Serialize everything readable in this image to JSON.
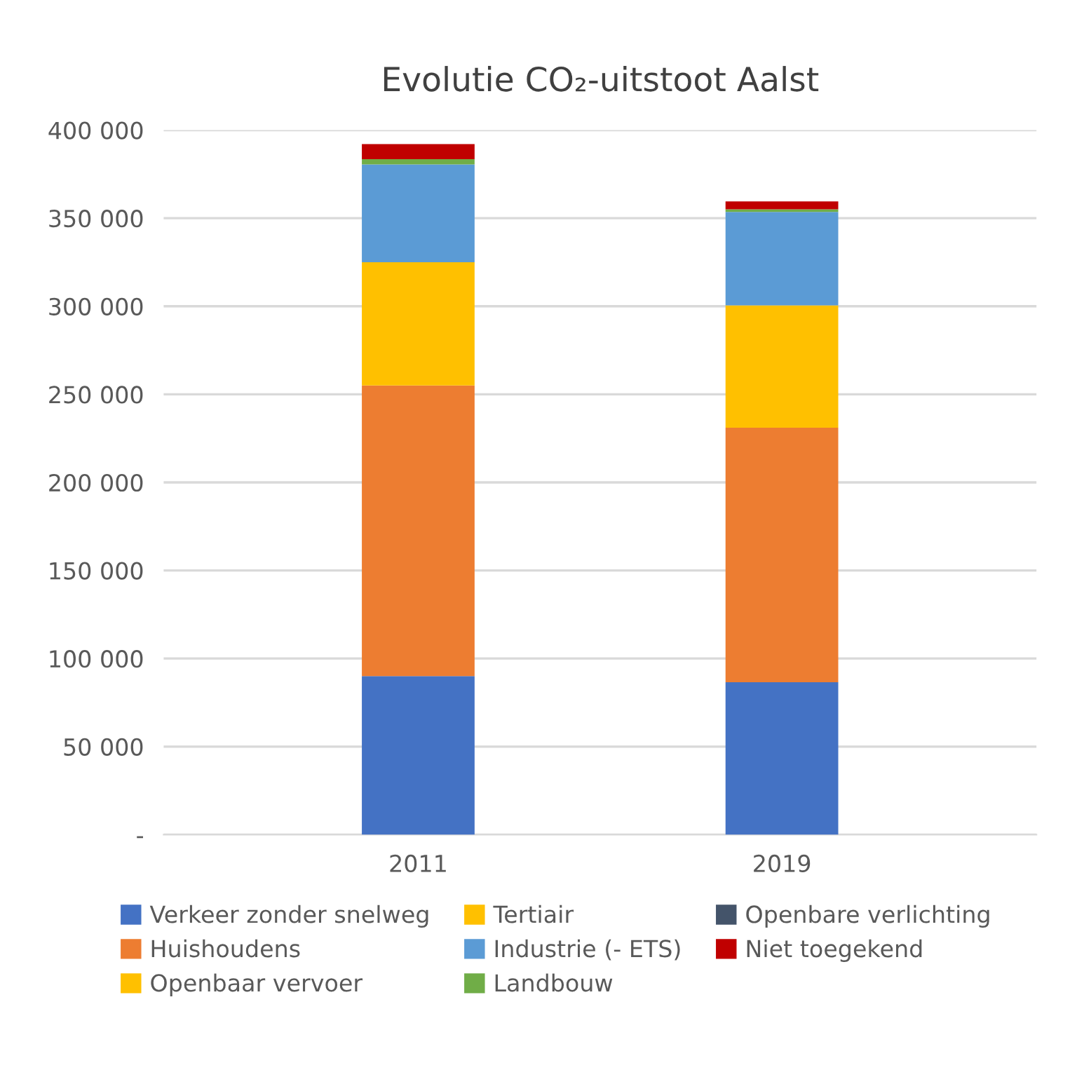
{
  "chart_data": {
    "type": "bar",
    "stacked": true,
    "title": "Evolutie CO₂-uitstoot Aalst",
    "categories": [
      "2011",
      "2019"
    ],
    "series": [
      {
        "name": "Verkeer zonder snelweg",
        "color": "#4472c4",
        "values": [
          90000,
          86500
        ]
      },
      {
        "name": "Huishoudens",
        "color": "#ed7d31",
        "values": [
          165000,
          144500
        ]
      },
      {
        "name": "Openbaar vervoer",
        "color": "#ffc000",
        "values": [
          0,
          0
        ]
      },
      {
        "name": "Tertiair",
        "color": "#ffc000",
        "values": [
          70000,
          69500
        ]
      },
      {
        "name": "Industrie (- ETS)",
        "color": "#5b9bd5",
        "values": [
          55500,
          53000
        ]
      },
      {
        "name": "Landbouw",
        "color": "#70ad47",
        "values": [
          3000,
          1500
        ]
      },
      {
        "name": "Openbare verlichting",
        "color": "#44546a",
        "values": [
          0,
          0
        ]
      },
      {
        "name": "Niet toegekend",
        "color": "#c00000",
        "values": [
          8500,
          4500
        ]
      }
    ],
    "ylim": [
      0,
      400000
    ],
    "yticks": [
      {
        "value": 0,
        "label": "-"
      },
      {
        "value": 50000,
        "label": "50 000"
      },
      {
        "value": 100000,
        "label": "100 000"
      },
      {
        "value": 150000,
        "label": "150 000"
      },
      {
        "value": 200000,
        "label": "200 000"
      },
      {
        "value": 250000,
        "label": "250 000"
      },
      {
        "value": 300000,
        "label": "300 000"
      },
      {
        "value": 350000,
        "label": "350 000"
      },
      {
        "value": 400000,
        "label": "400 000"
      }
    ],
    "grid": "y",
    "legend": "bottom"
  }
}
